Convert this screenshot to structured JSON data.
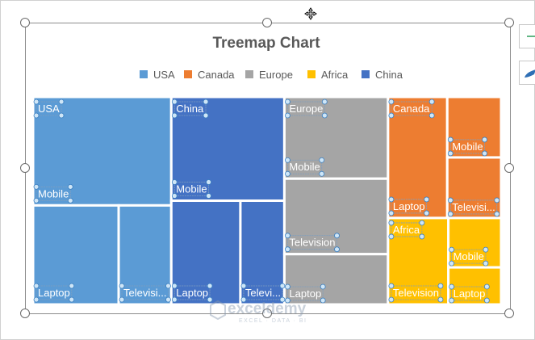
{
  "chart_data": {
    "type": "treemap",
    "title": "Treemap Chart",
    "legend_position": "top",
    "series": [
      {
        "name": "USA",
        "color": "#5b9bd5",
        "items": [
          {
            "label": "Mobile",
            "value": 23
          },
          {
            "label": "Laptop",
            "value": 13
          },
          {
            "label": "Television",
            "value": 8
          }
        ]
      },
      {
        "name": "China",
        "color": "#4472c4",
        "items": [
          {
            "label": "Mobile",
            "value": 18
          },
          {
            "label": "Laptop",
            "value": 11
          },
          {
            "label": "Television",
            "value": 7
          }
        ]
      },
      {
        "name": "Europe",
        "color": "#a5a5a5",
        "items": [
          {
            "label": "Mobile",
            "value": 13
          },
          {
            "label": "Television",
            "value": 12
          },
          {
            "label": "Laptop",
            "value": 8
          }
        ]
      },
      {
        "name": "Canada",
        "color": "#ed7d31",
        "items": [
          {
            "label": "Laptop",
            "value": 11
          },
          {
            "label": "Mobile",
            "value": 5
          },
          {
            "label": "Television",
            "value": 5
          }
        ]
      },
      {
        "name": "Africa",
        "color": "#ffc000",
        "items": [
          {
            "label": "Television",
            "value": 8
          },
          {
            "label": "Mobile",
            "value": 4
          },
          {
            "label": "Laptop",
            "value": 3
          }
        ]
      }
    ],
    "legend": [
      {
        "name": "USA",
        "color": "#5b9bd5"
      },
      {
        "name": "Canada",
        "color": "#ed7d31"
      },
      {
        "name": "Europe",
        "color": "#a5a5a5"
      },
      {
        "name": "Africa",
        "color": "#ffc000"
      },
      {
        "name": "China",
        "color": "#4472c4"
      }
    ]
  },
  "watermark": {
    "name": "exceldemy",
    "tagline": "EXCEL · DATA · BI"
  },
  "icons": {
    "side_button_1": "plus-icon",
    "side_button_2": "brush-icon",
    "cursor": "move-cursor-icon"
  }
}
